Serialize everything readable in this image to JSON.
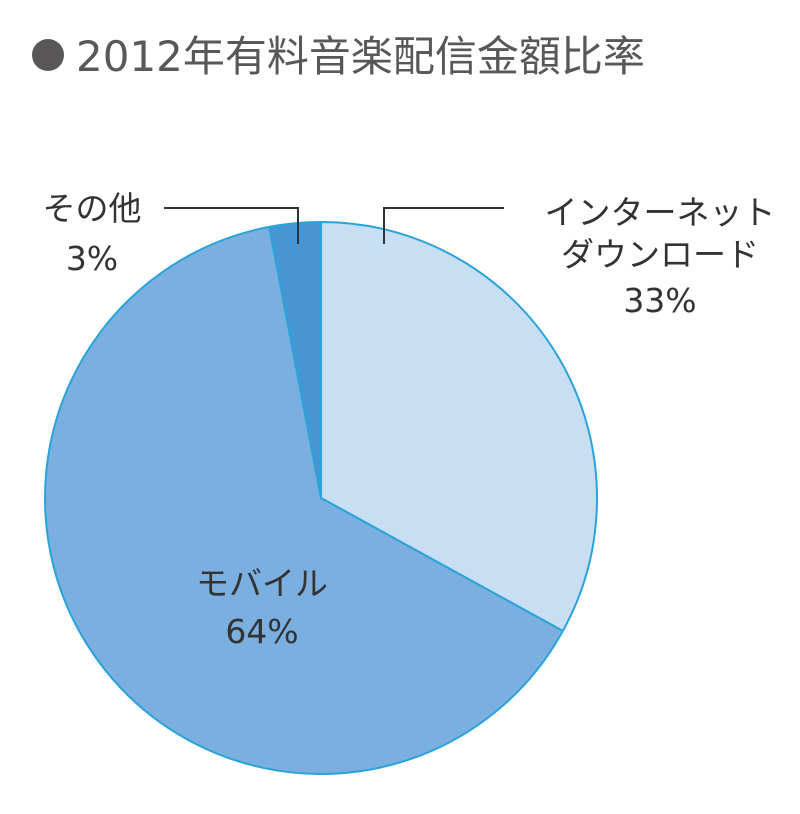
{
  "title": "2012年有料音楽配信金額比率",
  "chart_data": {
    "type": "pie",
    "title": "2012年有料音楽配信金額比率",
    "slices": [
      {
        "label": "インターネット ダウンロード",
        "label_lines": [
          "インターネット",
          "ダウンロード"
        ],
        "value": 33,
        "value_label": "33%",
        "color": "#c8def3"
      },
      {
        "label": "モバイル",
        "label_lines": [
          "モバイル"
        ],
        "value": 64,
        "value_label": "64%",
        "color": "#7aafdf"
      },
      {
        "label": "その他",
        "label_lines": [
          "その他"
        ],
        "value": 3,
        "value_label": "3%",
        "color": "#4796d3"
      }
    ],
    "start_angle": "12 o'clock",
    "direction": "clockwise",
    "outline_color": "#2aa3d9"
  }
}
